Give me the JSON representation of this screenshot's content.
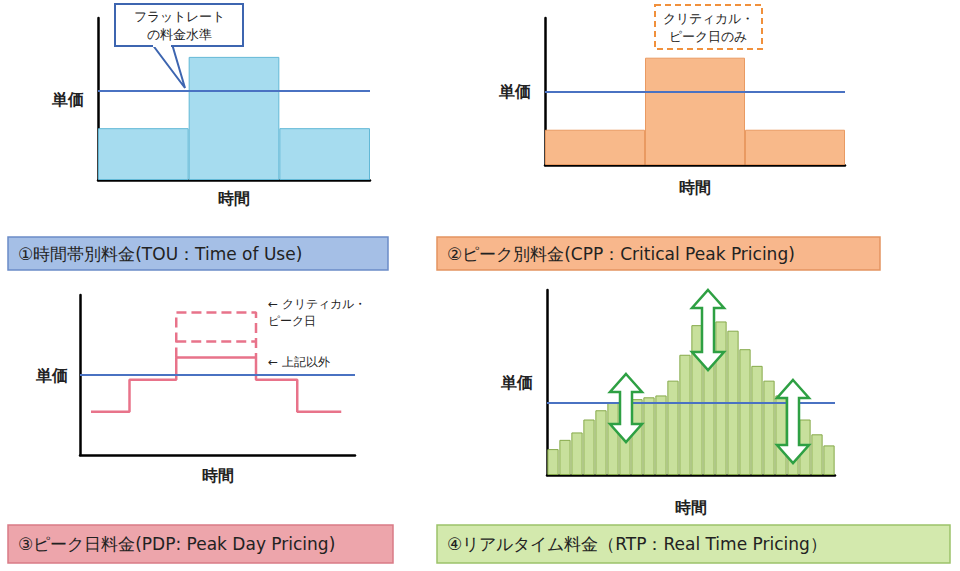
{
  "chart_data": [
    {
      "type": "bar",
      "title": "①時間帯別料金(TOU：Time of Use)",
      "xlabel": "時間",
      "ylabel": "単価",
      "annotation": "フラットレート\nの料金水準",
      "categories": [
        null,
        null,
        null
      ],
      "values": [
        3.2,
        7.6,
        3.2
      ],
      "color": "#a6dcef",
      "flat_rate": 5.5,
      "ylim": [
        0,
        10
      ],
      "tick_labels": false,
      "grid": false
    },
    {
      "type": "bar",
      "title": "②ピーク別料金(CPP：Critical Peak Pricing)",
      "xlabel": "時間",
      "ylabel": "単価",
      "annotation": "クリティカル・\nピーク日のみ",
      "categories": [
        null,
        null,
        null
      ],
      "values": [
        2.4,
        7.3,
        2.4
      ],
      "color": "#f8b98a",
      "flat_rate": 5.0,
      "ylim": [
        0,
        10
      ],
      "tick_labels": false,
      "grid": false
    },
    {
      "type": "line",
      "title": "③ピーク日料金(PDP: Peak Day Pricing)",
      "xlabel": "時間",
      "ylabel": "単価",
      "annotations": [
        "← クリティカル・\nピーク日",
        "← 上記以外"
      ],
      "series": [
        {
          "type": "step",
          "color": "#e8738a",
          "line_style": "solid",
          "x": [
            0.4,
            1.8,
            3.5,
            6.4,
            7.9,
            9.5
          ],
          "values": [
            2.7,
            4.7,
            6.1,
            4.7,
            2.7,
            2.7
          ]
        },
        {
          "type": "line",
          "color": "#e8738a",
          "line_style": "dashed",
          "x": [
            3.5,
            3.5,
            6.4,
            6.4
          ],
          "values": [
            6.1,
            8.9,
            8.9,
            6.1
          ]
        },
        {
          "type": "line",
          "color": "#e8738a",
          "line_style": "dashed",
          "x": [
            3.5,
            6.4
          ],
          "values": [
            7.1,
            7.1
          ]
        }
      ],
      "flat_rate": 5.0,
      "xlim": [
        0,
        10
      ],
      "ylim": [
        0,
        10
      ],
      "tick_labels": false,
      "grid": false
    },
    {
      "type": "bar",
      "title": "④リアルタイム料金（RTP：Real Time Pricing）",
      "xlabel": "時間",
      "ylabel": "単価",
      "categories": [
        null,
        null,
        null,
        null,
        null,
        null,
        null,
        null,
        null,
        null,
        null,
        null,
        null,
        null,
        null,
        null,
        null,
        null,
        null,
        null,
        null,
        null,
        null,
        null
      ],
      "values": [
        1.4,
        1.9,
        2.3,
        3.0,
        3.5,
        3.9,
        4.1,
        4.1,
        4.2,
        4.3,
        5.1,
        6.5,
        8.1,
        8.4,
        8.3,
        7.8,
        6.8,
        5.9,
        5.1,
        4.3,
        3.8,
        3.0,
        2.2,
        1.6
      ],
      "color": "#c8e09c",
      "flat_rate": 3.9,
      "ylim": [
        0,
        10
      ],
      "tick_labels": false,
      "grid": false
    }
  ]
}
